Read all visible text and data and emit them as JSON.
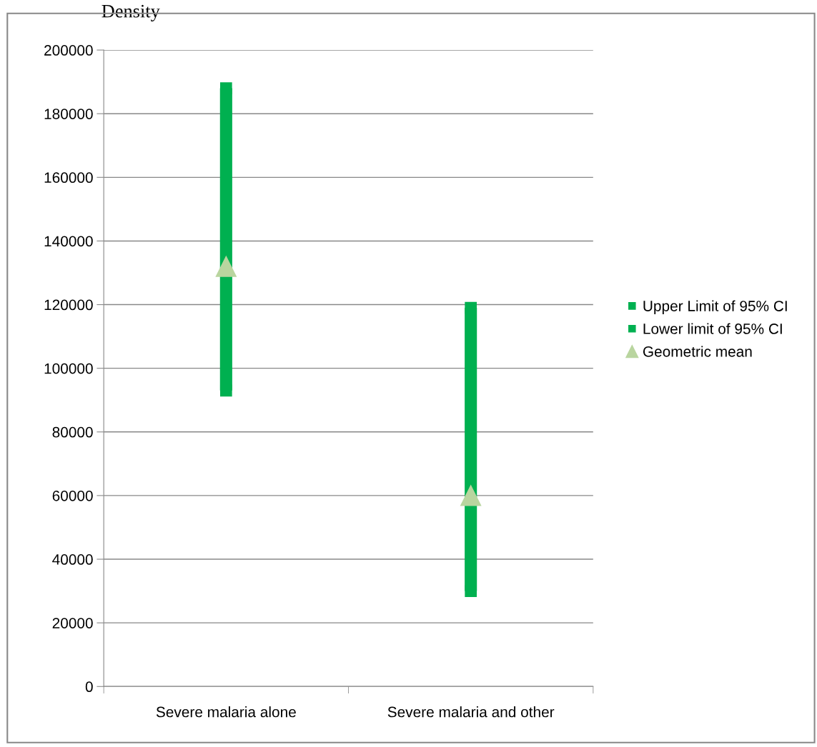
{
  "chart_data": {
    "type": "scatter",
    "ylabel": "Density",
    "categories": [
      "Severe malaria alone",
      "Severe malaria and other"
    ],
    "ylim": [
      0,
      200000
    ],
    "yticks": [
      0,
      20000,
      40000,
      60000,
      80000,
      100000,
      120000,
      140000,
      160000,
      180000,
      200000
    ],
    "grid": "y",
    "legend": "right",
    "series": [
      {
        "type": "bar",
        "color": "#00b050",
        "base": [
          93000,
          30000
        ],
        "values": [
          95000,
          89000
        ]
      },
      {
        "name": "Upper Limit of 95% CI",
        "marker": "square",
        "color": "#00b050",
        "values": [
          188000,
          119000
        ]
      },
      {
        "name": "Lower limit of 95% CI",
        "marker": "square",
        "color": "#00b050",
        "values": [
          93000,
          30000
        ]
      },
      {
        "name": "Geometric mean",
        "marker": "triangle",
        "color": "#b9d59f",
        "values": [
          132000,
          60000
        ]
      }
    ]
  }
}
